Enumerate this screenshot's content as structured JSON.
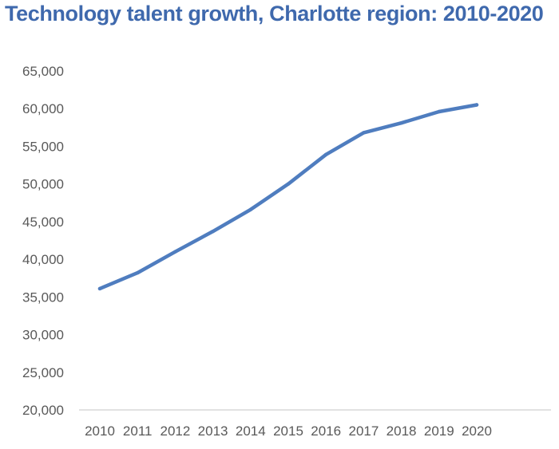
{
  "chart_data": {
    "type": "line",
    "title": "Technology talent growth, Charlotte region: 2010-2020",
    "xlabel": "",
    "ylabel": "",
    "categories": [
      "2010",
      "2011",
      "2012",
      "2013",
      "2014",
      "2015",
      "2016",
      "2017",
      "2018",
      "2019",
      "2020"
    ],
    "values": [
      36100,
      38200,
      41000,
      43700,
      46600,
      50000,
      53900,
      56800,
      58100,
      59600,
      60500
    ],
    "ylim": [
      20000,
      65000
    ],
    "yticks": [
      "20,000",
      "25,000",
      "30,000",
      "35,000",
      "40,000",
      "45,000",
      "50,000",
      "55,000",
      "60,000",
      "65,000"
    ],
    "grid": false,
    "legend": "none",
    "line_color": "#4f7dbf",
    "title_color": "#3f69ad"
  }
}
